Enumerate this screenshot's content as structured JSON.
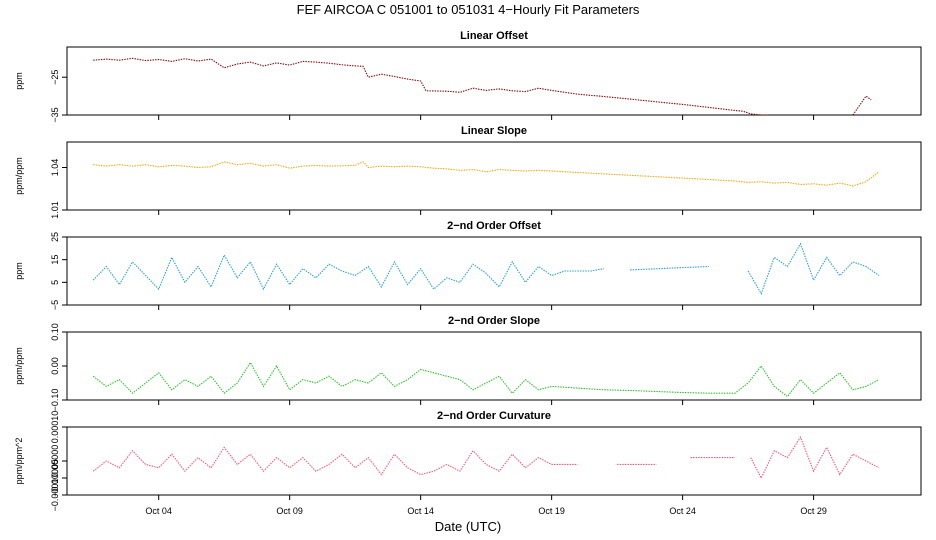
{
  "title": "FEF   AIRCOA C   051001 to 051031   4−Hourly Fit Parameters",
  "colors": {
    "offset": "#8b0000",
    "slope": "#ffa500",
    "order2_offset": "#1e9fd8",
    "order2_slope": "#22c322",
    "curvature": "#ff4f6e"
  },
  "chart_data": [
    {
      "type": "line",
      "title": "Linear Offset",
      "ylabel": "ppm",
      "ylim": [
        -35,
        -17
      ],
      "yticks": [
        -35,
        -25
      ],
      "ytick_labels": [
        "−35",
        "−25"
      ],
      "color_key": "offset",
      "x": [
        1.5,
        2,
        2.5,
        3,
        3.5,
        4,
        4.5,
        5,
        5.5,
        6,
        6.5,
        7,
        7.5,
        8,
        8.5,
        9,
        9.5,
        10,
        10.5,
        11,
        11.5,
        11.8,
        12,
        12.5,
        13,
        13.5,
        14,
        14.2,
        15,
        15.5,
        16,
        16.5,
        17,
        17.5,
        18,
        18.5,
        19,
        20,
        21,
        22,
        23,
        24,
        25,
        26,
        26.3,
        26.6,
        27,
        27.3
      ],
      "y": [
        -20.5,
        -20.2,
        -20.5,
        -20.0,
        -20.6,
        -20.3,
        -20.8,
        -20.1,
        -20.7,
        -20.2,
        -22.5,
        -21.5,
        -21.0,
        -22.0,
        -21.2,
        -21.8,
        -20.8,
        -21.0,
        -21.3,
        -21.7,
        -22.0,
        -22.1,
        -25.0,
        -24.2,
        -24.8,
        -25.5,
        -26.0,
        -28.6,
        -28.7,
        -29.0,
        -27.9,
        -28.5,
        -28.1,
        -28.6,
        -28.8,
        -27.9,
        -28.5,
        -29.5,
        -30.1,
        -30.8,
        -31.5,
        -32.2,
        -33.0,
        -33.8,
        -34.0,
        -34.7,
        -35.0,
        -35.0
      ],
      "segments": [
        {
          "x": [
            30.5,
            31.0,
            31.2
          ],
          "y": [
            -35.0,
            -30.0,
            -31.0
          ]
        }
      ]
    },
    {
      "type": "line",
      "title": "Linear Slope",
      "ylabel": "ppm/ppm",
      "ylim": [
        1.01,
        1.058
      ],
      "yticks": [
        1.01,
        1.04
      ],
      "ytick_labels": [
        "1.01",
        "1.04"
      ],
      "color_key": "slope",
      "x": [
        1.5,
        2,
        2.5,
        3,
        3.5,
        4,
        4.5,
        5,
        5.5,
        6,
        6.5,
        7,
        7.5,
        8,
        8.5,
        9,
        9.5,
        10,
        10.5,
        11,
        11.5,
        11.8,
        12,
        12.5,
        13,
        13.5,
        14,
        14.5,
        15,
        15.5,
        16,
        16.5,
        17,
        17.5,
        18,
        18.5,
        19,
        20,
        21,
        22,
        23,
        24,
        25,
        26,
        26.5,
        27,
        27.5,
        28,
        28.5,
        29,
        29.5,
        30,
        30.5,
        31,
        31.5
      ],
      "y": [
        1.042,
        1.041,
        1.042,
        1.041,
        1.042,
        1.0405,
        1.0415,
        1.041,
        1.04,
        1.0405,
        1.044,
        1.042,
        1.043,
        1.041,
        1.042,
        1.0395,
        1.041,
        1.0415,
        1.041,
        1.0412,
        1.0415,
        1.044,
        1.04,
        1.041,
        1.0405,
        1.041,
        1.0405,
        1.0395,
        1.039,
        1.038,
        1.0385,
        1.037,
        1.0385,
        1.038,
        1.0375,
        1.038,
        1.0375,
        1.0365,
        1.0355,
        1.0345,
        1.0335,
        1.0325,
        1.0315,
        1.0305,
        1.0295,
        1.03,
        1.029,
        1.0295,
        1.028,
        1.0285,
        1.0275,
        1.029,
        1.027,
        1.03,
        1.037
      ]
    },
    {
      "type": "line",
      "title": "2−nd Order Offset",
      "ylabel": "ppm",
      "ylim": [
        -5,
        25
      ],
      "yticks": [
        -5,
        5,
        15,
        25
      ],
      "ytick_labels": [
        "−5",
        "5",
        "15",
        "25"
      ],
      "color_key": "order2_offset",
      "x": [
        1.5,
        2,
        2.5,
        3,
        3.5,
        4,
        4.5,
        5,
        5.5,
        6,
        6.5,
        7,
        7.5,
        8,
        8.5,
        9,
        9.5,
        10,
        10.5,
        11,
        11.5,
        12,
        12.5,
        13,
        13.5,
        14,
        14.5,
        15,
        15.5,
        16,
        16.5,
        17,
        17.5,
        18,
        18.5,
        19,
        19.5,
        20,
        20.5,
        21
      ],
      "y": [
        6,
        12,
        4,
        14,
        8,
        2,
        16,
        5,
        12,
        3,
        17,
        7,
        14,
        2,
        13,
        4,
        11,
        7,
        13,
        10,
        8,
        12,
        3,
        14,
        4,
        11,
        2,
        7,
        5,
        13,
        9,
        3,
        14,
        5,
        12,
        8,
        10,
        10,
        10,
        11
      ],
      "segments": [
        {
          "x": [
            22.0,
            24.0,
            25.0
          ],
          "y": [
            10.5,
            11.5,
            12.0
          ]
        },
        {
          "x": [
            26.5,
            27,
            27.5,
            28,
            28.5,
            29,
            29.5,
            30,
            30.5,
            31,
            31.5
          ],
          "y": [
            10,
            0,
            16,
            12,
            22,
            6,
            16,
            8,
            14,
            12,
            8
          ]
        }
      ]
    },
    {
      "type": "line",
      "title": "2−nd Order Slope",
      "ylabel": "ppm/ppm",
      "ylim": [
        -0.1,
        0.1
      ],
      "yticks": [
        -0.1,
        0.0,
        0.1
      ],
      "ytick_labels": [
        "−0.10",
        "0.00",
        "0.10"
      ],
      "color_key": "order2_slope",
      "x": [
        1.5,
        2,
        2.5,
        3,
        3.5,
        4,
        4.5,
        5,
        5.5,
        6,
        6.5,
        7,
        7.5,
        8,
        8.5,
        9,
        9.5,
        10,
        10.5,
        11,
        11.5,
        12,
        12.5,
        13,
        13.5,
        14,
        14.5,
        15,
        15.5,
        16,
        16.5,
        17,
        17.5,
        18,
        18.5,
        19,
        20,
        21,
        22,
        23,
        24,
        25,
        26,
        26.5,
        27,
        27.5,
        28,
        28.5,
        29,
        29.5,
        30,
        30.5,
        31,
        31.5
      ],
      "y": [
        -0.03,
        -0.06,
        -0.04,
        -0.08,
        -0.05,
        -0.02,
        -0.07,
        -0.04,
        -0.06,
        -0.03,
        -0.08,
        -0.05,
        0.01,
        -0.06,
        0.0,
        -0.07,
        -0.04,
        -0.05,
        -0.03,
        -0.06,
        -0.04,
        -0.05,
        -0.02,
        -0.06,
        -0.04,
        -0.01,
        -0.02,
        -0.03,
        -0.04,
        -0.07,
        -0.05,
        -0.03,
        -0.08,
        -0.04,
        -0.07,
        -0.06,
        -0.065,
        -0.07,
        -0.072,
        -0.075,
        -0.078,
        -0.08,
        -0.08,
        -0.05,
        0.0,
        -0.06,
        -0.09,
        -0.04,
        -0.08,
        -0.05,
        -0.02,
        -0.07,
        -0.06,
        -0.04
      ]
    },
    {
      "type": "line",
      "title": "2−nd Order Curvature",
      "ylabel": "ppm/ppm^2",
      "ylim": [
        -0.0001,
        0.0001
      ],
      "yticks": [
        -0.0001,
        -5e-05,
        0.0,
        0.0001
      ],
      "ytick_labels": [
        "−0.0001",
        "−0.00005",
        "0.00000",
        "0.00010"
      ],
      "color_key": "curvature",
      "x": [
        1.5,
        2,
        2.5,
        3,
        3.5,
        4,
        4.5,
        5,
        5.5,
        6,
        6.5,
        7,
        7.5,
        8,
        8.5,
        9,
        9.5,
        10,
        10.5,
        11,
        11.5,
        12,
        12.5,
        13,
        13.5,
        14,
        14.5,
        15,
        15.5,
        16,
        16.5,
        17,
        17.5,
        18,
        18.5,
        19,
        19.5,
        20
      ],
      "y": [
        -3e-05,
        0.0,
        -2e-05,
        3e-05,
        -1e-05,
        -2e-05,
        2e-05,
        -3e-05,
        1e-05,
        -2e-05,
        4e-05,
        -1e-05,
        2e-05,
        -3e-05,
        1e-05,
        -2e-05,
        1e-05,
        -3e-05,
        -1e-05,
        2e-05,
        -2e-05,
        1e-05,
        -4e-05,
        2e-05,
        -2e-05,
        -4e-05,
        -3e-05,
        -1e-05,
        -3e-05,
        3e-05,
        -1e-05,
        -3e-05,
        2e-05,
        -2e-05,
        1e-05,
        -1e-05,
        -1e-05,
        -1e-05
      ],
      "segments": [
        {
          "x": [
            21.5,
            23.0
          ],
          "y": [
            -1e-05,
            -1e-05
          ]
        },
        {
          "x": [
            24.3,
            26.0
          ],
          "y": [
            1e-05,
            1e-05
          ]
        },
        {
          "x": [
            26.6,
            27,
            27.5,
            28,
            28.5,
            29,
            29.5,
            30,
            30.5,
            31,
            31.5
          ],
          "y": [
            1e-05,
            -5e-05,
            3e-05,
            1e-05,
            7e-05,
            -3e-05,
            4e-05,
            -4e-05,
            2e-05,
            0.0,
            -2e-05
          ]
        }
      ]
    }
  ],
  "xaxis": {
    "label": "Date (UTC)",
    "xlim": [
      0.5,
      33.1
    ],
    "ticks": [
      4,
      9,
      14,
      19,
      24,
      29
    ],
    "tick_labels": [
      "Oct 04",
      "Oct 09",
      "Oct 14",
      "Oct 19",
      "Oct 24",
      "Oct 29"
    ]
  }
}
